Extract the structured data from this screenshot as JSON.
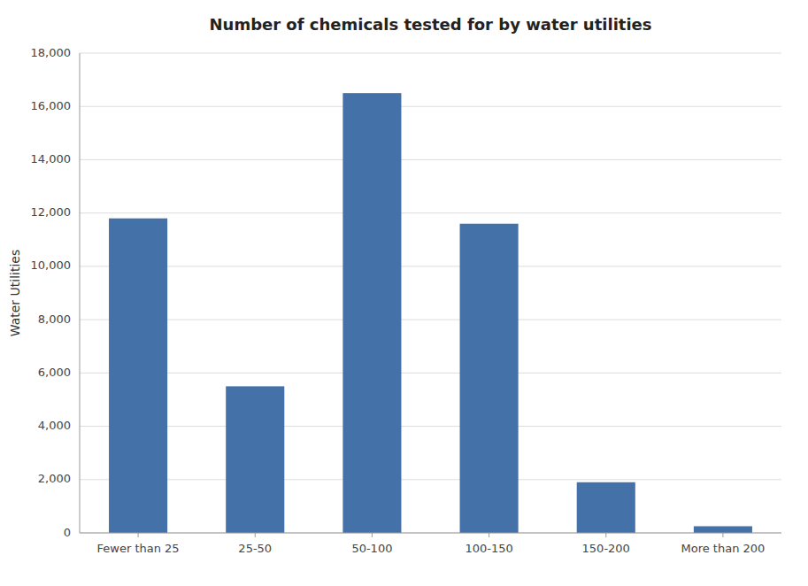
{
  "chart_data": {
    "type": "bar",
    "title": "Number of chemicals tested for by water utilities",
    "categories": [
      "Fewer than 25",
      "25-50",
      "50-100",
      "100-150",
      "150-200",
      "More than 200"
    ],
    "values": [
      11800,
      5500,
      16500,
      11600,
      1900,
      250
    ],
    "color": "#4472a8",
    "ylabel": "Water Utilities",
    "ylim": [
      0,
      18000
    ],
    "yticks": [
      0,
      {
        "value": 2000,
        "label": "2,000"
      },
      {
        "value": 4000,
        "label": "4,000"
      },
      {
        "value": 6000,
        "label": "6,000"
      },
      {
        "value": 8000,
        "label": "8,000"
      },
      {
        "value": 10000,
        "label": "10,000"
      },
      {
        "value": 12000,
        "label": "12,000"
      },
      {
        "value": 14000,
        "label": "14,000"
      },
      {
        "value": 16000,
        "label": "16,000"
      },
      {
        "value": 18000,
        "label": "18,000"
      }
    ],
    "grid": true
  }
}
